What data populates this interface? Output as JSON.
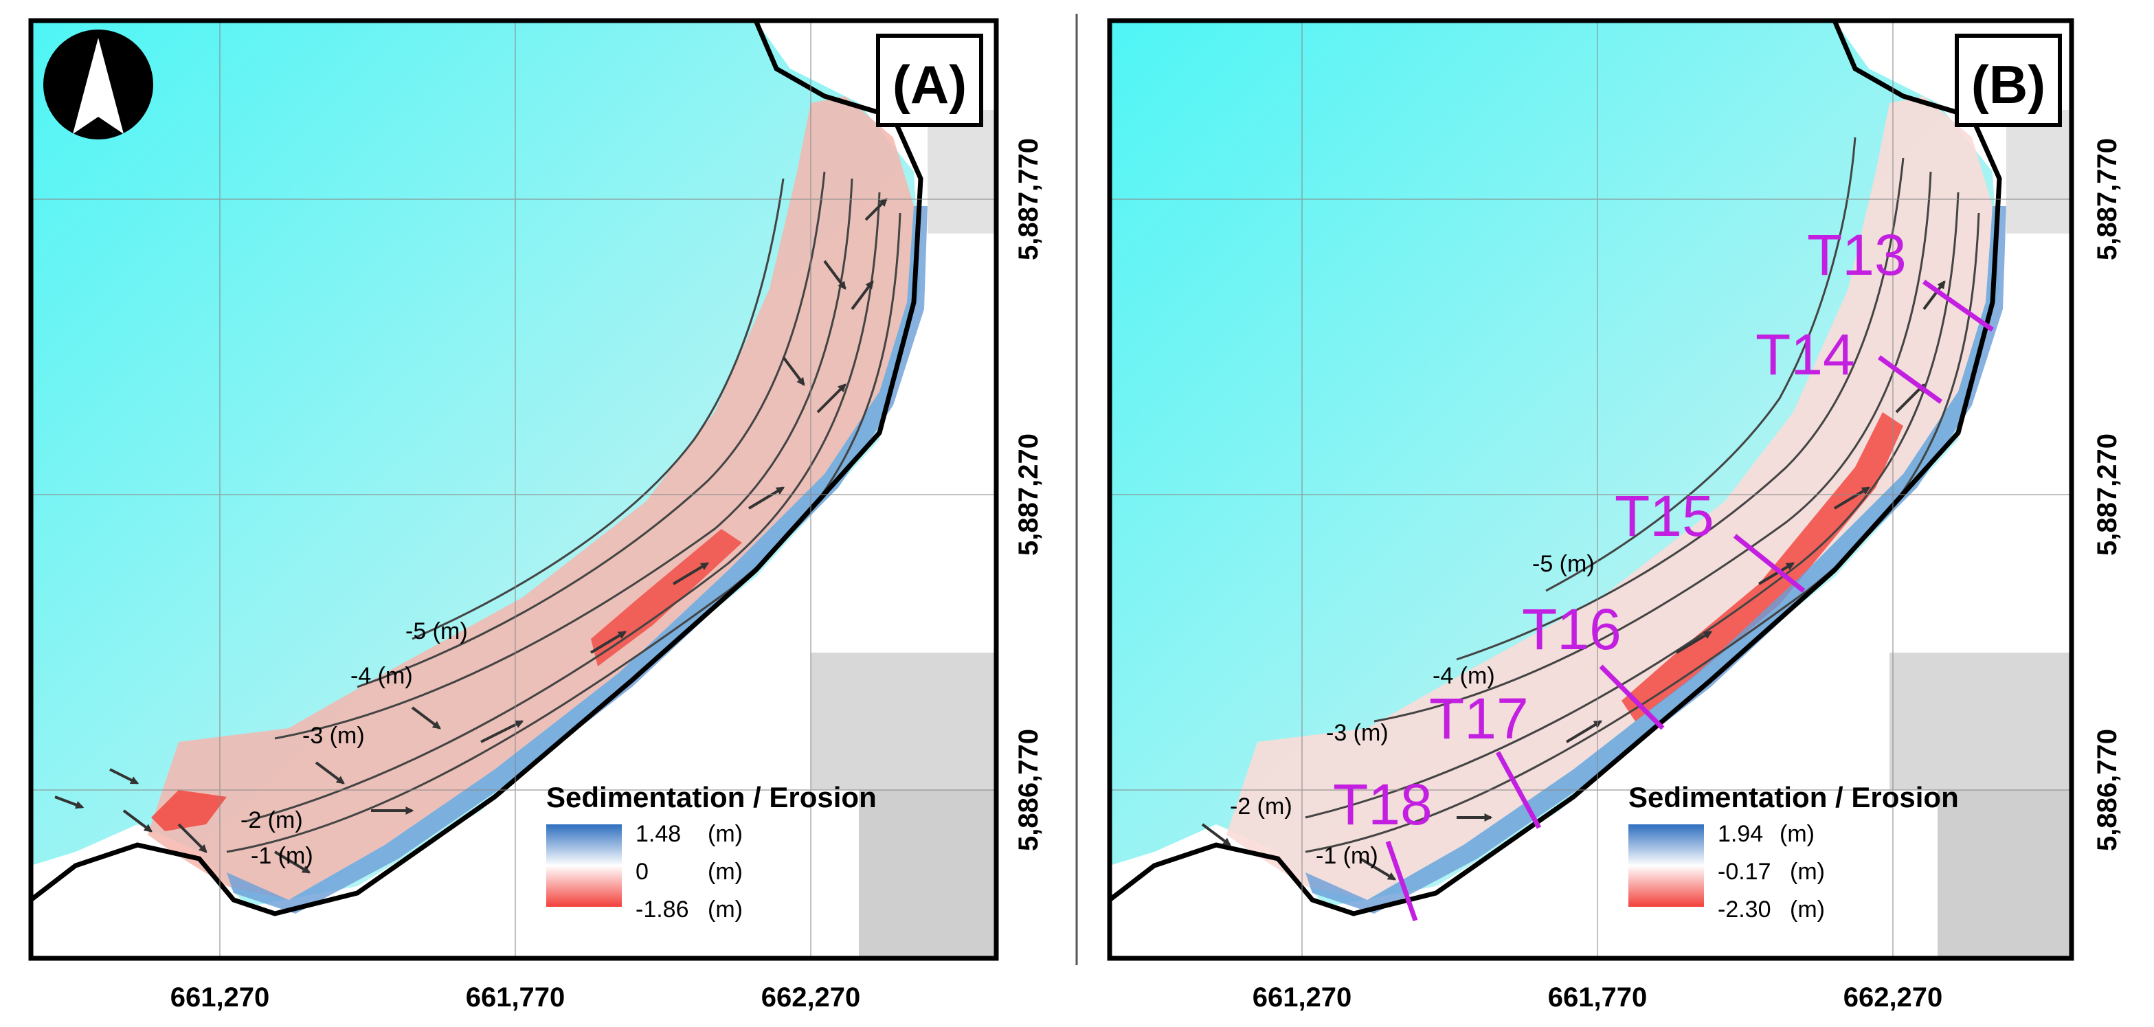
{
  "panels": [
    {
      "id": "A",
      "label": "(A)",
      "legend": {
        "title": "Sedimentation / Erosion",
        "max": "1.48",
        "mid": "0",
        "min": "-1.86",
        "unit": "(m)"
      },
      "contours": [
        "-5 (m)",
        "-4 (m)",
        "-3 (m)",
        "-2 (m)",
        "-1 (m)"
      ],
      "transects": []
    },
    {
      "id": "B",
      "label": "(B)",
      "legend": {
        "title": "Sedimentation / Erosion",
        "max": "1.94",
        "mid": "-0.17",
        "min": "-2.30",
        "unit": "(m)"
      },
      "contours": [
        "-5 (m)",
        "-4 (m)",
        "-3 (m)",
        "-2 (m)",
        "-1 (m)"
      ],
      "transects": [
        "T13",
        "T14",
        "T15",
        "T16",
        "T17",
        "T18"
      ]
    }
  ],
  "axes": {
    "x_ticks": [
      "661,270",
      "661,770",
      "662,270"
    ],
    "y_ticks": [
      "5,887,770",
      "5,887,270",
      "5,886,770"
    ]
  },
  "colors": {
    "shallow_water": "#4ff5f5",
    "deposition": "#2e6fbf",
    "erosion": "#f2403a",
    "transect": "#c21fe0",
    "coast": "#000000"
  },
  "north_arrow": "north-arrow-icon"
}
